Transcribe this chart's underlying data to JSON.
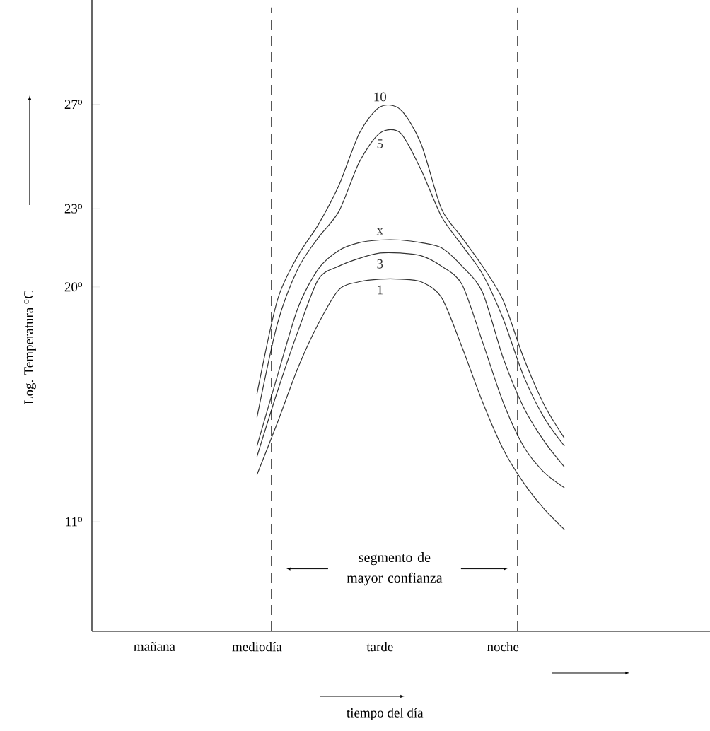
{
  "chart_data": {
    "type": "line",
    "ylabel": "Log. Temperatura $^{o}$C",
    "xlabel": "tiempo del día",
    "ylim": [
      6.8,
      31
    ],
    "categories": [
      null,
      null,
      null,
      "mañana",
      null,
      null,
      null,
      null,
      "mediodía",
      null,
      null,
      null,
      null,
      null,
      "tarde",
      null,
      null,
      null,
      null,
      null,
      "noche",
      null,
      null,
      null,
      null,
      null,
      null,
      null,
      null,
      null
    ],
    "yticks": [
      {
        "value": 11,
        "label": "11$^{o}$"
      },
      {
        "value": 20,
        "label": "20$^{o}$"
      },
      {
        "value": 23,
        "label": "23$^{o}$"
      },
      {
        "value": 27,
        "label": "27$^{o}$"
      }
    ],
    "series": [
      {
        "name": "10",
        "color": "#333333",
        "values": [
          null,
          null,
          null,
          null,
          null,
          null,
          null,
          null,
          15.9,
          19.5,
          21.2,
          22.4,
          23.9,
          25.9,
          26.9,
          26.8,
          25.5,
          23.0,
          21.9,
          20.8,
          19.5,
          17.3,
          15.5,
          14.2,
          null,
          null,
          null,
          null,
          null,
          null
        ]
      },
      {
        "name": "5",
        "color": "#333333",
        "values": [
          null,
          null,
          null,
          null,
          null,
          null,
          null,
          null,
          15.0,
          18.6,
          20.7,
          21.9,
          22.9,
          24.8,
          25.9,
          25.9,
          24.5,
          22.7,
          21.6,
          20.5,
          18.8,
          16.6,
          15.0,
          13.9,
          null,
          null,
          null,
          null,
          null,
          null
        ]
      },
      {
        "name": "x",
        "color": "#333333",
        "values": [
          null,
          null,
          null,
          null,
          null,
          null,
          null,
          null,
          13.9,
          16.6,
          19.2,
          20.7,
          21.4,
          21.7,
          21.8,
          21.8,
          21.7,
          21.5,
          20.8,
          19.8,
          17.3,
          15.4,
          14.1,
          13.1,
          null,
          null,
          null,
          null,
          null,
          null
        ]
      },
      {
        "name": "3",
        "color": "#333333",
        "values": [
          null,
          null,
          null,
          null,
          null,
          null,
          null,
          null,
          13.5,
          16.0,
          18.3,
          20.3,
          20.8,
          21.1,
          21.3,
          21.3,
          21.2,
          20.8,
          20.1,
          17.9,
          15.6,
          13.9,
          12.9,
          12.3,
          null,
          null,
          null,
          null,
          null,
          null
        ]
      },
      {
        "name": "1",
        "color": "#333333",
        "values": [
          null,
          null,
          null,
          null,
          null,
          null,
          null,
          null,
          12.8,
          14.8,
          16.9,
          18.6,
          19.9,
          20.2,
          20.3,
          20.3,
          20.2,
          19.6,
          17.7,
          15.6,
          13.8,
          12.5,
          11.5,
          10.7,
          null,
          null,
          null,
          null,
          null,
          null
        ]
      }
    ],
    "annotations": [
      "segmento de mayor confianza"
    ],
    "line_style": "solid"
  }
}
